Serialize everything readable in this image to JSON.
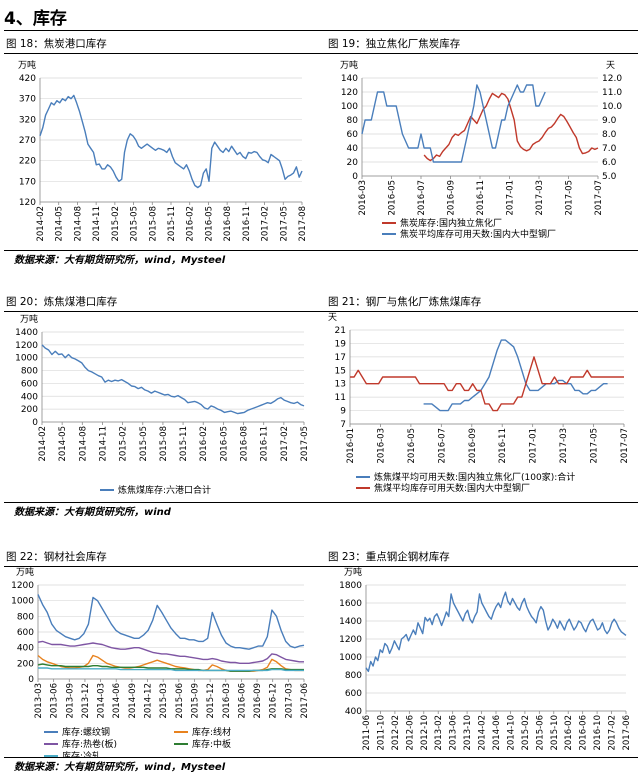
{
  "section_title": "4、库存",
  "sources": {
    "row1": "数据来源：大有期货研究所，wind，Mysteel",
    "row2": "数据来源：大有期货研究所，wind",
    "row3": "数据来源：大有期货研究所，wind，Mysteel"
  },
  "colors": {
    "blue": "#4a7ebb",
    "red": "#c0392b",
    "orange": "#e8821e",
    "purple": "#7e55a3",
    "teal": "#4bacc6",
    "grid": "#d9d9d9"
  },
  "chart_data": [
    {
      "id": "fig18",
      "type": "line",
      "title": "图 18：焦炭港口库存",
      "unit_left": "万吨",
      "ylim": [
        120,
        420
      ],
      "yticks": [
        120,
        170,
        220,
        270,
        320,
        370,
        420
      ],
      "xlabels": [
        "2014-02",
        "2014-05",
        "2014-08",
        "2014-11",
        "2015-02",
        "2015-05",
        "2015-08",
        "2015-11",
        "2016-02",
        "2016-05",
        "2016-08",
        "2016-11",
        "2017-02",
        "2017-05",
        "2017-08"
      ],
      "series": [
        {
          "name": "",
          "color": "#4a7ebb",
          "axis": "left",
          "start": 0,
          "values": [
            280,
            300,
            330,
            345,
            360,
            355,
            365,
            360,
            370,
            365,
            375,
            370,
            378,
            360,
            340,
            315,
            290,
            260,
            250,
            240,
            210,
            212,
            200,
            200,
            210,
            205,
            195,
            180,
            170,
            175,
            240,
            270,
            285,
            280,
            270,
            255,
            250,
            255,
            260,
            255,
            250,
            245,
            250,
            248,
            245,
            240,
            250,
            230,
            215,
            210,
            205,
            200,
            210,
            195,
            175,
            160,
            155,
            160,
            190,
            200,
            170,
            250,
            265,
            255,
            245,
            240,
            250,
            242,
            255,
            245,
            235,
            240,
            230,
            225,
            240,
            238,
            242,
            240,
            230,
            222,
            220,
            215,
            235,
            230,
            225,
            220,
            200,
            175,
            182,
            185,
            190,
            205,
            180,
            195
          ]
        }
      ]
    },
    {
      "id": "fig19",
      "type": "line",
      "title": "图 19：独立焦化厂焦炭库存",
      "unit_left": "万吨",
      "unit_right": "天",
      "ylim": [
        0,
        140
      ],
      "yticks": [
        0,
        20,
        40,
        60,
        80,
        100,
        120,
        140
      ],
      "ylim_right": [
        5.0,
        12.0
      ],
      "yticks_right": [
        "5.0",
        "6.0",
        "7.0",
        "8.0",
        "9.0",
        "10.0",
        "11.0",
        "12.0"
      ],
      "xlabels": [
        "2016-03",
        "2016-05",
        "2016-07",
        "2016-09",
        "2016-11",
        "2017-01",
        "2017-03",
        "2017-05",
        "2017-07"
      ],
      "series": [
        {
          "name": "焦炭库存:国内独立焦化厂",
          "color": "#c0392b",
          "axis": "left",
          "start": 20,
          "values": [
            30,
            25,
            22,
            25,
            30,
            28,
            35,
            40,
            45,
            55,
            60,
            58,
            62,
            65,
            75,
            85,
            80,
            75,
            85,
            95,
            100,
            110,
            118,
            115,
            112,
            118,
            116,
            110,
            95,
            80,
            50,
            42,
            38,
            36,
            38,
            45,
            48,
            50,
            55,
            62,
            68,
            70,
            75,
            82,
            88,
            85,
            78,
            70,
            62,
            55,
            40,
            32,
            33,
            35,
            40,
            38,
            40
          ]
        },
        {
          "name": "焦炭平均库存可用天数:国内大中型钢厂",
          "color": "#4a7ebb",
          "axis": "right",
          "start": 0,
          "values": [
            8.0,
            9.0,
            9.0,
            9.0,
            10.0,
            11.0,
            11.0,
            11.0,
            10.0,
            10.0,
            10.0,
            10.0,
            9.0,
            8.0,
            7.5,
            7.0,
            7.0,
            7.0,
            7.0,
            8.0,
            7.0,
            7.0,
            7.0,
            6.0,
            6.0,
            6.0,
            6.0,
            6.0,
            6.0,
            6.0,
            6.0,
            6.0,
            6.0,
            7.0,
            8.0,
            9.0,
            10.0,
            11.5,
            11.0,
            10.0,
            9.0,
            8.0,
            7.0,
            7.0,
            8.0,
            9.0,
            9.0,
            10.0,
            10.5,
            11.0,
            11.5,
            11.0,
            11.0,
            11.5,
            11.5,
            11.5,
            10.0,
            10.0,
            10.5,
            11.0
          ]
        }
      ]
    },
    {
      "id": "fig20",
      "type": "line",
      "title": "图 20：炼焦煤港口库存",
      "unit_left": "万吨",
      "ylim": [
        0,
        1400
      ],
      "yticks": [
        0,
        200,
        400,
        600,
        800,
        1000,
        1200,
        1400
      ],
      "xlabels": [
        "2014-02",
        "2014-05",
        "2014-08",
        "2014-11",
        "2015-02",
        "2015-05",
        "2015-08",
        "2015-11",
        "2016-02",
        "2016-05",
        "2016-08",
        "2016-11",
        "2017-02",
        "2017-05"
      ],
      "series": [
        {
          "name": "炼焦煤库存:六港口合计",
          "color": "#4a7ebb",
          "axis": "left",
          "start": 0,
          "values": [
            1200,
            1150,
            1120,
            1050,
            1100,
            1050,
            1060,
            1000,
            1050,
            1000,
            980,
            950,
            920,
            850,
            800,
            780,
            750,
            720,
            700,
            620,
            650,
            630,
            650,
            640,
            660,
            630,
            600,
            560,
            550,
            520,
            540,
            500,
            480,
            450,
            480,
            460,
            440,
            420,
            430,
            400,
            390,
            410,
            380,
            350,
            300,
            310,
            320,
            300,
            270,
            220,
            200,
            250,
            230,
            200,
            180,
            150,
            160,
            170,
            150,
            130,
            140,
            150,
            180,
            200,
            220,
            240,
            260,
            280,
            300,
            290,
            320,
            360,
            380,
            340,
            320,
            300,
            290,
            310,
            270,
            250
          ]
        }
      ]
    },
    {
      "id": "fig21",
      "type": "line",
      "title": "图 21：钢厂与焦化厂炼焦煤库存",
      "unit_left": "天",
      "ylim": [
        7,
        21
      ],
      "yticks": [
        7,
        9,
        11,
        13,
        15,
        17,
        19,
        21
      ],
      "xlabels": [
        "2016-01",
        "2016-03",
        "2016-05",
        "2016-07",
        "2016-09",
        "2016-11",
        "2017-01",
        "2017-03",
        "2017-05",
        "2017-07"
      ],
      "series": [
        {
          "name": "炼焦煤平均可用天数:国内独立焦化厂(100家):合计",
          "color": "#4a7ebb",
          "axis": "left",
          "start": 18,
          "values": [
            10,
            10,
            10,
            9.5,
            9,
            9,
            9,
            10,
            10,
            10,
            10.5,
            10.5,
            11,
            11.5,
            12,
            13,
            14,
            16,
            18,
            19.5,
            19.5,
            19,
            18.5,
            17,
            15,
            13,
            12,
            12,
            12,
            12.5,
            13,
            13,
            13,
            13.5,
            13.5,
            13,
            13,
            12,
            12,
            11.5,
            11.5,
            12,
            12,
            12.5,
            13,
            13
          ]
        },
        {
          "name": "焦煤平均库存可用天数:国内大中型钢厂",
          "color": "#c0392b",
          "axis": "left",
          "start": 0,
          "values": [
            14,
            14,
            15,
            14,
            13,
            13,
            13,
            13,
            14,
            14,
            14,
            14,
            14,
            14,
            14,
            14,
            14,
            13,
            13,
            13,
            13,
            13,
            13,
            13,
            12,
            12,
            13,
            13,
            12,
            12,
            13,
            12,
            12,
            10,
            10,
            9,
            9,
            10,
            10,
            10,
            10,
            11,
            11,
            13,
            15,
            17,
            15,
            13,
            13,
            13,
            14,
            13,
            13,
            13,
            14,
            14,
            14,
            14,
            15,
            14,
            14,
            14,
            14,
            14,
            14,
            14,
            14,
            14
          ]
        }
      ]
    },
    {
      "id": "fig22",
      "type": "line",
      "title": "图 22：钢材社会库存",
      "unit_left": "万吨",
      "ylim": [
        0,
        1200
      ],
      "yticks": [
        0,
        200,
        400,
        600,
        800,
        1000,
        1200
      ],
      "xlabels": [
        "2013-03",
        "2013-06",
        "2013-09",
        "2013-12",
        "2014-03",
        "2014-06",
        "2014-09",
        "2014-12",
        "2015-03",
        "2015-06",
        "2015-09",
        "2015-12",
        "2016-03",
        "2016-06",
        "2016-09",
        "2016-12",
        "2017-03",
        "2017-06"
      ],
      "series": [
        {
          "name": "库存:螺纹钢",
          "color": "#4a7ebb",
          "axis": "left",
          "start": 0,
          "values": [
            1080,
            950,
            850,
            700,
            620,
            580,
            540,
            520,
            500,
            520,
            580,
            700,
            1040,
            1000,
            900,
            800,
            700,
            620,
            580,
            560,
            540,
            520,
            520,
            560,
            620,
            750,
            940,
            850,
            750,
            650,
            580,
            520,
            520,
            500,
            500,
            480,
            480,
            520,
            850,
            700,
            560,
            460,
            420,
            400,
            400,
            390,
            380,
            400,
            420,
            420,
            540,
            880,
            800,
            620,
            480,
            420,
            400,
            420,
            430
          ]
        },
        {
          "name": "库存:线材",
          "color": "#e8821e",
          "axis": "left",
          "start": 0,
          "values": [
            300,
            250,
            220,
            200,
            180,
            160,
            150,
            140,
            140,
            150,
            160,
            200,
            300,
            280,
            240,
            200,
            180,
            160,
            150,
            140,
            140,
            150,
            160,
            180,
            200,
            220,
            240,
            220,
            200,
            180,
            160,
            150,
            140,
            130,
            120,
            110,
            110,
            120,
            180,
            160,
            130,
            110,
            100,
            100,
            100,
            100,
            100,
            100,
            110,
            120,
            150,
            250,
            220,
            170,
            130,
            120,
            110,
            110,
            110
          ]
        },
        {
          "name": "库存:热卷(板)",
          "color": "#7e55a3",
          "axis": "left",
          "start": 0,
          "values": [
            470,
            480,
            460,
            440,
            440,
            440,
            430,
            420,
            420,
            430,
            440,
            450,
            460,
            450,
            440,
            420,
            400,
            390,
            380,
            380,
            390,
            400,
            400,
            380,
            360,
            340,
            330,
            320,
            320,
            310,
            300,
            290,
            290,
            280,
            270,
            260,
            250,
            250,
            260,
            250,
            230,
            220,
            210,
            210,
            200,
            200,
            200,
            210,
            220,
            230,
            260,
            320,
            310,
            280,
            250,
            240,
            230,
            220,
            220
          ]
        },
        {
          "name": "库存:中板",
          "color": "#2e7d32",
          "axis": "left",
          "start": 0,
          "values": [
            180,
            190,
            180,
            170,
            170,
            170,
            160,
            160,
            160,
            160,
            160,
            160,
            170,
            170,
            160,
            160,
            150,
            150,
            150,
            150,
            150,
            150,
            150,
            150,
            140,
            140,
            140,
            140,
            140,
            130,
            130,
            130,
            130,
            120,
            120,
            120,
            110,
            110,
            110,
            110,
            110,
            110,
            100,
            100,
            100,
            100,
            100,
            110,
            110,
            110,
            120,
            130,
            130,
            130,
            120,
            120,
            120,
            120,
            120
          ]
        },
        {
          "name": "库存:冷轧",
          "color": "#4bacc6",
          "axis": "left",
          "start": 0,
          "values": [
            140,
            140,
            140,
            130,
            130,
            130,
            130,
            130,
            130,
            130,
            130,
            130,
            130,
            130,
            130,
            130,
            130,
            130,
            120,
            120,
            120,
            120,
            120,
            120,
            120,
            120,
            120,
            120,
            120,
            120,
            110,
            110,
            110,
            110,
            110,
            110,
            110,
            110,
            110,
            110,
            110,
            110,
            110,
            110,
            110,
            110,
            110,
            110,
            110,
            110,
            110,
            120,
            120,
            120,
            110,
            110,
            110,
            110,
            110
          ]
        }
      ]
    },
    {
      "id": "fig23",
      "type": "line",
      "title": "图 23：重点钢企钢材库存",
      "unit_left": "万吨",
      "ylim": [
        400,
        1800
      ],
      "yticks": [
        400,
        600,
        800,
        1000,
        1200,
        1400,
        1600,
        1800
      ],
      "xlabels": [
        "2011-06",
        "2011-10",
        "2012-02",
        "2012-06",
        "2012-10",
        "2013-02",
        "2013-06",
        "2013-10",
        "2014-02",
        "2014-06",
        "2014-10",
        "2015-02",
        "2015-06",
        "2015-10",
        "2016-02",
        "2016-06",
        "2016-10",
        "2017-02",
        "2017-06"
      ],
      "series": [
        {
          "name": "",
          "color": "#4a7ebb",
          "axis": "left",
          "start": 0,
          "values": [
            880,
            840,
            950,
            900,
            1000,
            960,
            1080,
            1050,
            1150,
            1120,
            1040,
            1100,
            1180,
            1130,
            1080,
            1200,
            1220,
            1250,
            1180,
            1240,
            1300,
            1250,
            1380,
            1320,
            1260,
            1440,
            1400,
            1430,
            1360,
            1450,
            1480,
            1420,
            1350,
            1420,
            1500,
            1450,
            1700,
            1600,
            1550,
            1500,
            1450,
            1400,
            1480,
            1520,
            1420,
            1380,
            1450,
            1500,
            1700,
            1600,
            1550,
            1500,
            1450,
            1420,
            1500,
            1560,
            1600,
            1550,
            1650,
            1720,
            1620,
            1580,
            1650,
            1600,
            1550,
            1520,
            1600,
            1650,
            1560,
            1500,
            1450,
            1420,
            1380,
            1500,
            1560,
            1520,
            1400,
            1300,
            1350,
            1420,
            1380,
            1320,
            1400,
            1350,
            1300,
            1380,
            1420,
            1360,
            1300,
            1340,
            1400,
            1380,
            1320,
            1280,
            1350,
            1400,
            1420,
            1360,
            1300,
            1320,
            1380,
            1300,
            1260,
            1300,
            1380,
            1420,
            1380,
            1320,
            1280,
            1260,
            1240
          ]
        }
      ]
    }
  ]
}
